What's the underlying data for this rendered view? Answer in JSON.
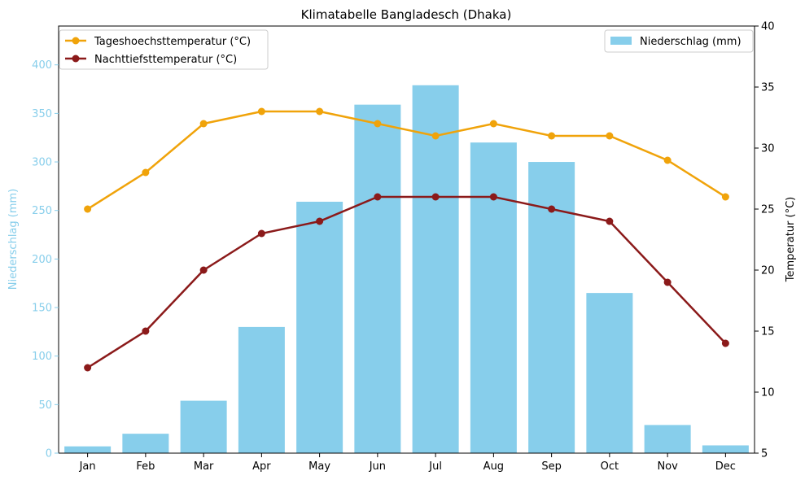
{
  "chart_data": {
    "type": "bar+line",
    "title": "Klimatabelle Bangladesch (Dhaka)",
    "categories": [
      "Jan",
      "Feb",
      "Mar",
      "Apr",
      "May",
      "Jun",
      "Jul",
      "Aug",
      "Sep",
      "Oct",
      "Nov",
      "Dec"
    ],
    "bar_series": {
      "name": "Niederschlag (mm)",
      "values": [
        7,
        20,
        54,
        130,
        259,
        359,
        379,
        320,
        300,
        165,
        29,
        8
      ],
      "color": "#87ceeb",
      "axis": "left"
    },
    "line_series": [
      {
        "name": "Tageshoechsttemperatur (°C)",
        "values": [
          25,
          28,
          32,
          33,
          33,
          32,
          31,
          32,
          31,
          31,
          29,
          26
        ],
        "color": "#f0a30a",
        "axis": "right"
      },
      {
        "name": "Nachttiefsttemperatur (°C)",
        "values": [
          12,
          15,
          20,
          23,
          24,
          26,
          26,
          26,
          25,
          24,
          19,
          14
        ],
        "color": "#8b1a1a",
        "axis": "right"
      }
    ],
    "left_axis": {
      "label": "Niederschlag (mm)",
      "ylim": [
        0,
        440
      ],
      "ticks": [
        0,
        50,
        100,
        150,
        200,
        250,
        300,
        350,
        400
      ],
      "color": "#87ceeb"
    },
    "right_axis": {
      "label": "Temperatur (°C)",
      "ylim": [
        5,
        40
      ],
      "ticks": [
        5,
        10,
        15,
        20,
        25,
        30,
        35,
        40
      ],
      "color": "#000000"
    },
    "legend_lines_position": "top-left",
    "legend_bars_position": "top-right",
    "grid": false
  }
}
